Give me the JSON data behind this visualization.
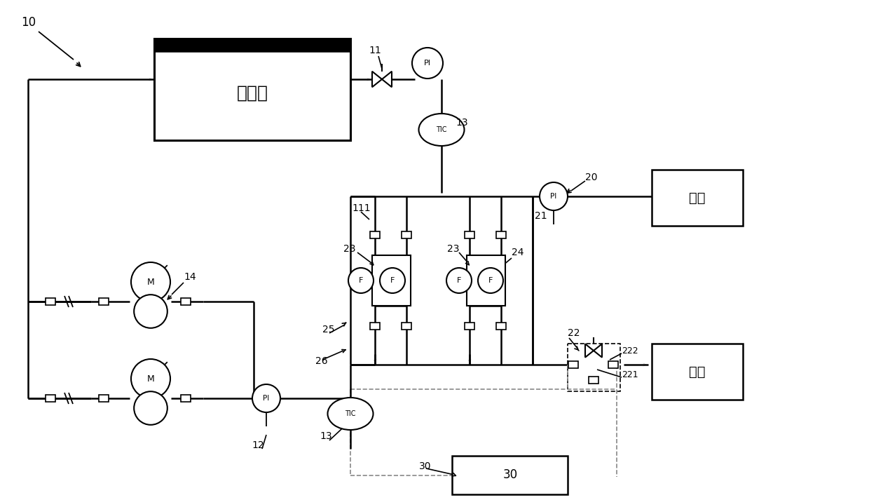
{
  "bg": "#ffffff",
  "lc": "#000000",
  "lw": 1.8,
  "crystallizer_label": "结晶器",
  "inlet_label": "进水",
  "outlet_label": "回水"
}
